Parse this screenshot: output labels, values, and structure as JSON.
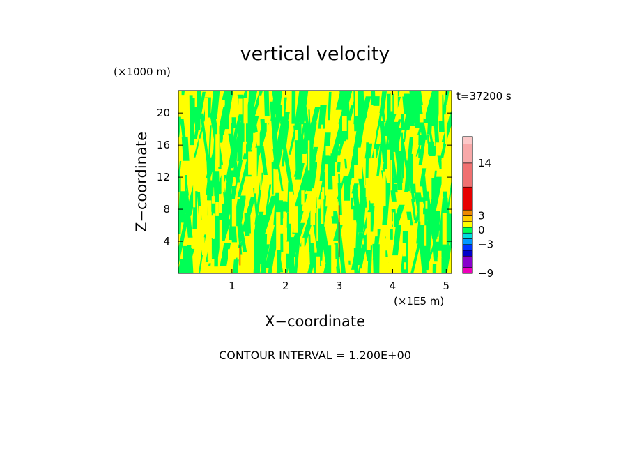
{
  "chart_data": {
    "type": "heatmap",
    "title": "vertical velocity",
    "xlabel": "X−coordinate",
    "ylabel": "Z−coordinate",
    "x_unit": "(×1E5 m)",
    "y_unit": "(×1000 m)",
    "time_label": "t=37200 s",
    "footer": "CONTOUR INTERVAL = 1.200E+00",
    "xlim": [
      0,
      5.1
    ],
    "ylim": [
      0,
      22.8
    ],
    "x_ticks": [
      1,
      2,
      3,
      4,
      5
    ],
    "y_ticks": [
      4,
      8,
      12,
      16,
      20
    ],
    "grid": false,
    "field": {
      "dominant_colors": [
        "#ffff00",
        "#00ff55"
      ],
      "structure": "vertically elongated streaks alternating yellow and green across the domain",
      "spikes": [
        {
          "x": 3.0,
          "z_range": [
            2.0,
            8.5
          ],
          "color": "#e60000"
        },
        {
          "x": 1.15,
          "z_range": [
            1.0,
            3.5
          ],
          "color": "#e60000"
        }
      ]
    },
    "colorbar": {
      "labels": [
        {
          "value": 14,
          "text": "14"
        },
        {
          "value": 3,
          "text": "3"
        },
        {
          "value": 0,
          "text": "0"
        },
        {
          "value": -3,
          "text": "−3"
        },
        {
          "value": -9,
          "text": "−9"
        }
      ],
      "segments": [
        {
          "lo": -9,
          "hi": -7.8,
          "color": "#ee00bb"
        },
        {
          "lo": -7.8,
          "hi": -5.4,
          "color": "#8800cc"
        },
        {
          "lo": -5.4,
          "hi": -4.2,
          "color": "#0000cc"
        },
        {
          "lo": -4.2,
          "hi": -3.0,
          "color": "#0033ff"
        },
        {
          "lo": -3.0,
          "hi": -1.8,
          "color": "#0099ff"
        },
        {
          "lo": -1.8,
          "hi": -0.6,
          "color": "#00dddd"
        },
        {
          "lo": -0.6,
          "hi": 0.6,
          "color": "#00ff55"
        },
        {
          "lo": 0.6,
          "hi": 1.8,
          "color": "#ffff00"
        },
        {
          "lo": 1.8,
          "hi": 3.0,
          "color": "#ffcc00"
        },
        {
          "lo": 3.0,
          "hi": 4.2,
          "color": "#ee8800"
        },
        {
          "lo": 4.2,
          "hi": 9.0,
          "color": "#e60000"
        },
        {
          "lo": 9.0,
          "hi": 14.0,
          "color": "#f07070"
        },
        {
          "lo": 14.0,
          "hi": 18.0,
          "color": "#f8a8a8"
        },
        {
          "lo": 18.0,
          "hi": 19.5,
          "color": "#fcc8c8"
        }
      ]
    }
  }
}
